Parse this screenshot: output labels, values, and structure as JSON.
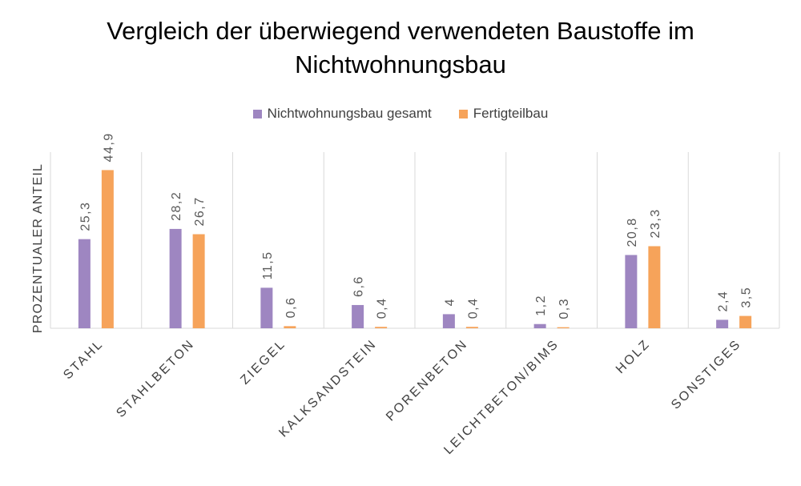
{
  "chart_data": {
    "type": "bar",
    "title_lines": [
      "Vergleich der überwiegend verwendeten Baustoffe im",
      "Nichtwohnungsbau"
    ],
    "categories": [
      "STAHL",
      "STAHLBETON",
      "ZIEGEL",
      "KALKSANDSTEIN",
      "PORENBETON",
      "LEICHTBETON/BIMS",
      "HOLZ",
      "SONSTIGES"
    ],
    "series": [
      {
        "name": "Nichtwohnungsbau gesamt",
        "color": "#9e86c1",
        "values": [
          25.3,
          28.2,
          11.5,
          6.6,
          4,
          1.2,
          20.8,
          2.4
        ],
        "labels": [
          "25,3",
          "28,2",
          "11,5",
          "6,6",
          "4",
          "1,2",
          "20,8",
          "2,4"
        ]
      },
      {
        "name": "Fertigteilbau",
        "color": "#f6a35a",
        "values": [
          44.9,
          26.7,
          0.6,
          0.4,
          0.4,
          0.3,
          23.3,
          3.5
        ],
        "labels": [
          "44,9",
          "26,7",
          "0,6",
          "0,4",
          "0,4",
          "0,3",
          "23,3",
          "3,5"
        ]
      }
    ],
    "xlabel": "",
    "ylabel": "PROZENTUALER ANTEIL",
    "ylim": [
      0,
      50
    ],
    "legend_position": "top",
    "grid": false,
    "category_separators": true
  }
}
